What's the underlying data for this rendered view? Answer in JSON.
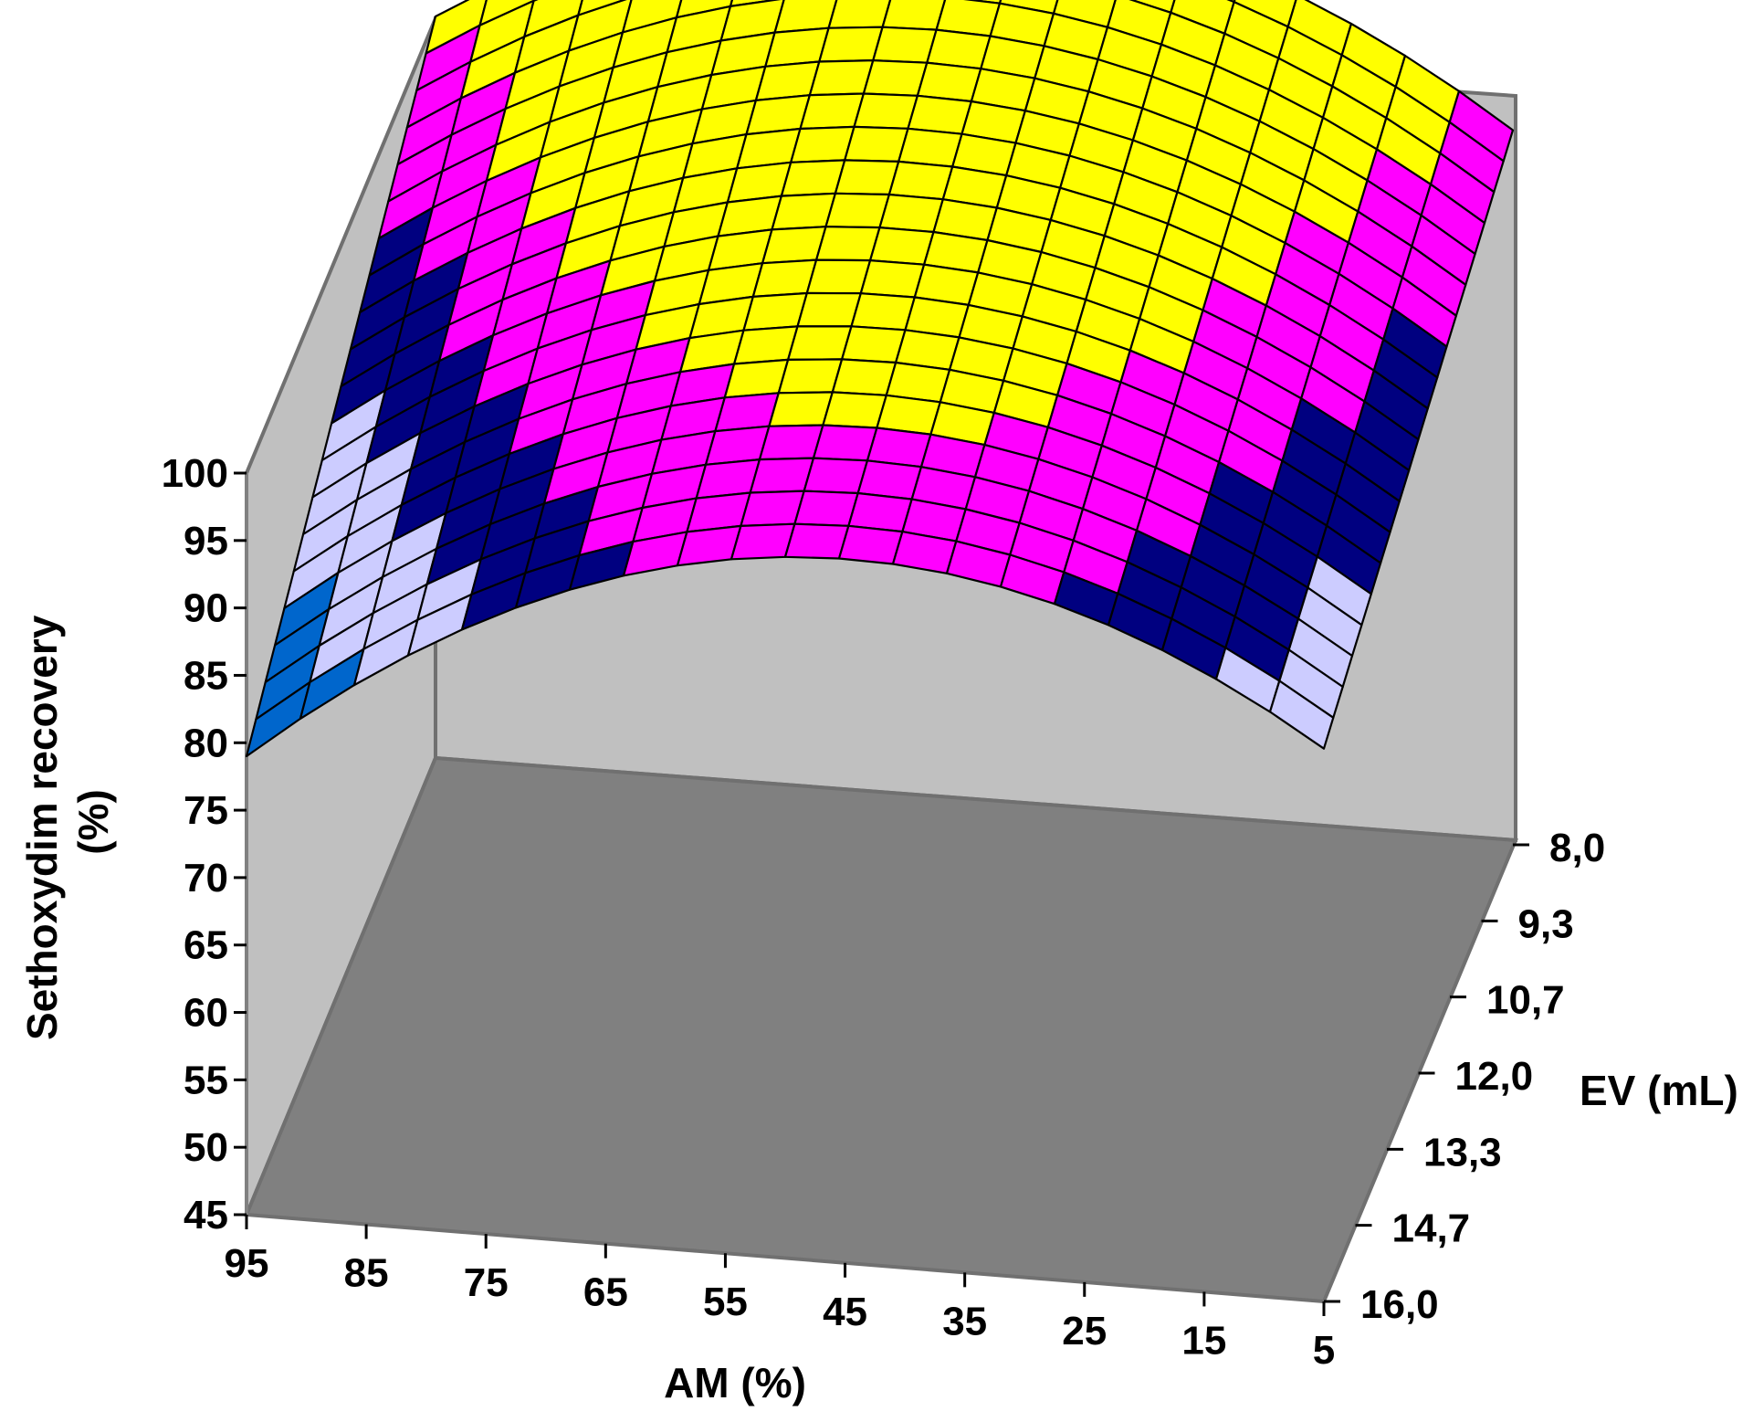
{
  "chart_data": {
    "type": "surface3d",
    "title": "",
    "zlabel": [
      "Sethoxydim recovery",
      "(%)"
    ],
    "xlabel": "AM (%)",
    "ylabel": "EV (mL)",
    "x_ticks": [
      "95",
      "85",
      "75",
      "65",
      "55",
      "45",
      "35",
      "25",
      "15",
      "5"
    ],
    "y_ticks": [
      "8,0",
      "9,3",
      "10,7",
      "12,0",
      "13,3",
      "14,7",
      "16,0"
    ],
    "z_ticks": [
      "45",
      "50",
      "55",
      "60",
      "65",
      "70",
      "75",
      "80",
      "85",
      "90",
      "95",
      "100"
    ],
    "xlim": [
      95,
      5
    ],
    "ylim": [
      8.0,
      16.0
    ],
    "zlim": [
      45,
      100
    ],
    "surface": {
      "grid_x_steps": 20,
      "grid_y_steps": 20,
      "corner_values": {
        "AM95_EV8": 100,
        "AM5_EV8": 98,
        "AM95_EV16": 79,
        "AM5_EV16": 86,
        "AM50_EV8_max": 112,
        "AM50_EV16_max": 97
      }
    },
    "color_bands": [
      {
        "range": [
          75,
          80
        ],
        "color": "#1E64C8"
      },
      {
        "range": [
          80,
          85
        ],
        "color": "#0066CC"
      },
      {
        "range": [
          85,
          90
        ],
        "color": "#CCCCFF"
      },
      {
        "range": [
          90,
          95
        ],
        "color": "#000080"
      },
      {
        "range": [
          95,
          100
        ],
        "color": "#FF00FF"
      },
      {
        "range": [
          100,
          105
        ],
        "color": "#FFFF00"
      }
    ],
    "walls": {
      "back": "#C0C0C0",
      "side": "#C0C0C0",
      "floor": "#808080"
    }
  }
}
